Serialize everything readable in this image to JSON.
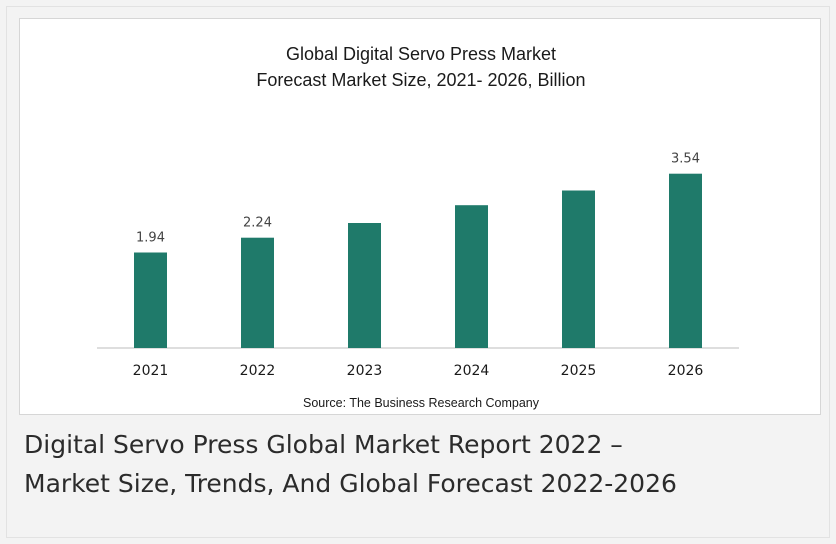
{
  "chart_data": {
    "type": "bar",
    "title": "Global Digital Servo Press Market",
    "subtitle": "Forecast Market Size, 2021- 2026, Billion",
    "categories": [
      "2021",
      "2022",
      "2023",
      "2024",
      "2025",
      "2026"
    ],
    "values": [
      1.94,
      2.24,
      2.54,
      2.9,
      3.2,
      3.54
    ],
    "data_labels": [
      "1.94",
      "2.24",
      "",
      "",
      "",
      "3.54"
    ],
    "source": "Source: The Business Research Company",
    "bar_color": "#1f7a6a",
    "ylim": [
      0,
      3.9
    ],
    "grid": false,
    "legend": "none"
  },
  "caption": {
    "line1": "Digital Servo Press Global Market Report 2022 –",
    "line2": "Market Size, Trends, And Global Forecast 2022-2026"
  }
}
